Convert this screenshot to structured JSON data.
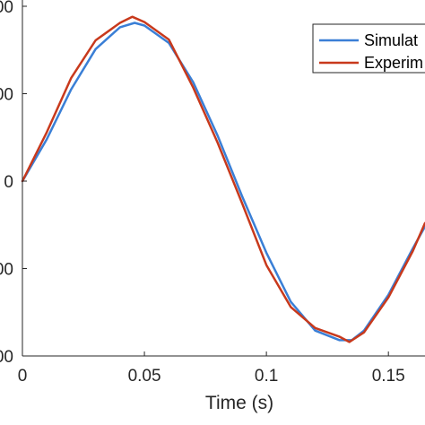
{
  "chart_data": {
    "type": "line",
    "title": "",
    "xlabel": "Time (s)",
    "ylabel": "",
    "xlim": [
      0,
      0.165
    ],
    "ylim": [
      -200,
      200
    ],
    "xticks": [
      0,
      0.05,
      0.1,
      0.15
    ],
    "xtick_labels": [
      "0",
      "0.05",
      "0.1",
      "0.15"
    ],
    "yticks": [
      -200,
      -100,
      0,
      100,
      200
    ],
    "ytick_labels": [
      "00",
      "00",
      "0",
      "00",
      "00"
    ],
    "grid": false,
    "legend_position": "top-right",
    "series": [
      {
        "name": "Simulat",
        "color": "#3a7fd6",
        "x": [
          0,
          0.01,
          0.02,
          0.03,
          0.04,
          0.046,
          0.05,
          0.06,
          0.07,
          0.08,
          0.09,
          0.1,
          0.11,
          0.12,
          0.13,
          0.135,
          0.14,
          0.15,
          0.16,
          0.165
        ],
        "y": [
          0,
          48,
          105,
          151,
          176,
          181,
          178,
          158,
          113,
          52,
          -17,
          -82,
          -138,
          -171,
          -182,
          -182,
          -171,
          -130,
          -77,
          -52
        ]
      },
      {
        "name": "Experim",
        "color": "#c8391c",
        "x": [
          0,
          0.01,
          0.02,
          0.03,
          0.04,
          0.045,
          0.05,
          0.06,
          0.07,
          0.08,
          0.09,
          0.1,
          0.11,
          0.12,
          0.13,
          0.134,
          0.14,
          0.15,
          0.16,
          0.165
        ],
        "y": [
          0,
          56,
          118,
          161,
          181,
          188,
          182,
          162,
          107,
          44,
          -25,
          -96,
          -144,
          -168,
          -178,
          -184,
          -173,
          -133,
          -80,
          -48
        ]
      }
    ]
  }
}
